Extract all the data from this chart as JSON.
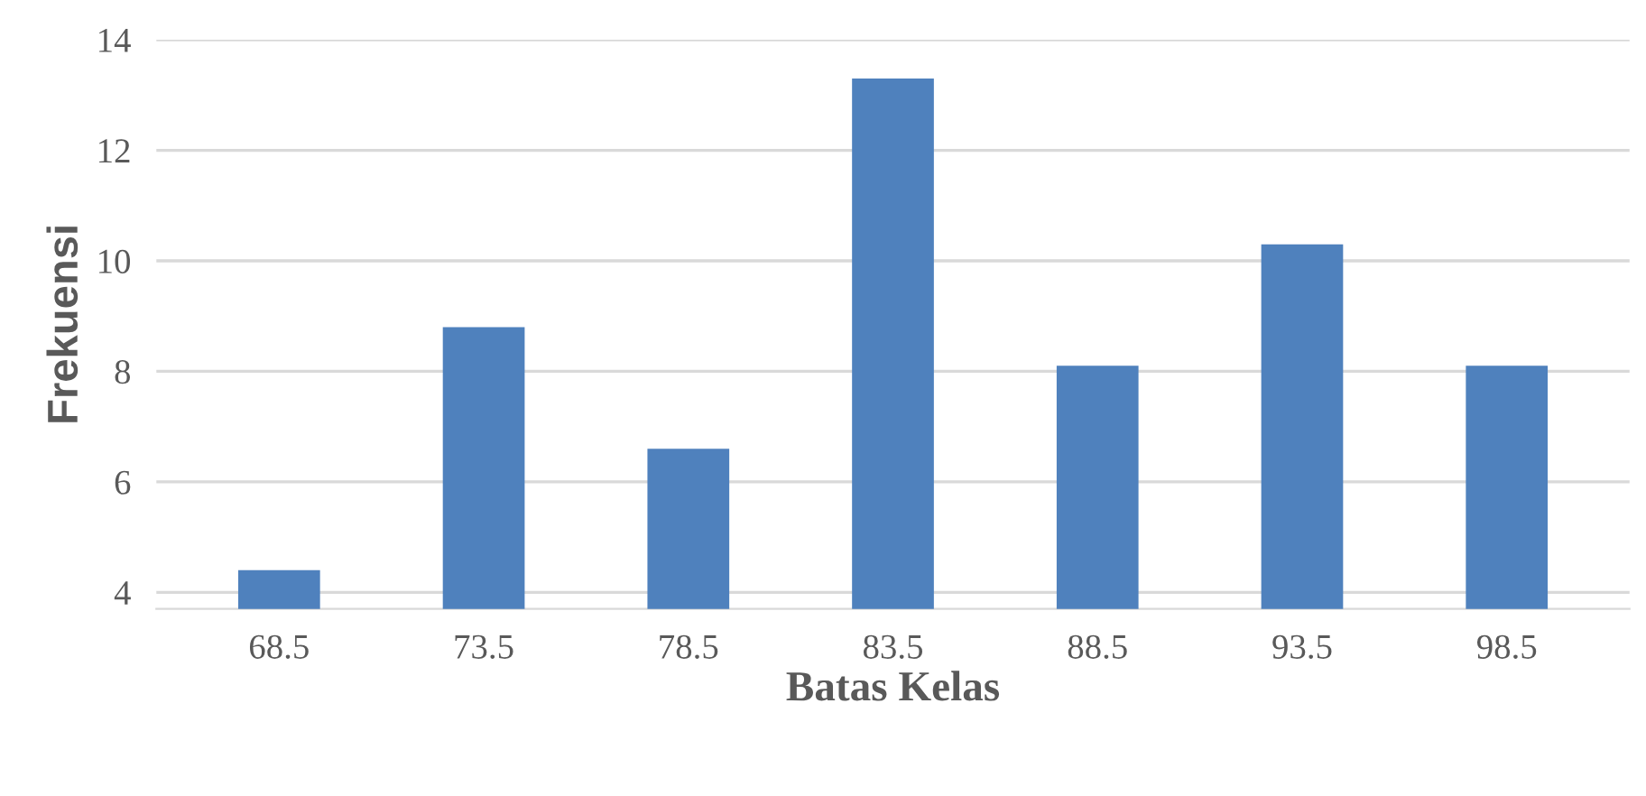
{
  "chart_data": {
    "type": "bar",
    "xlabel": "Batas Kelas",
    "ylabel": "Frekuensi",
    "categories": [
      "68.5",
      "73.5",
      "78.5",
      "83.5",
      "88.5",
      "93.5",
      "98.5"
    ],
    "values": [
      4.4,
      8.8,
      6.6,
      13.3,
      8.1,
      10.3,
      8.1
    ],
    "color": "#4f81bd",
    "ylim": [
      3.7,
      14
    ],
    "yticks": [
      4,
      6,
      8,
      10,
      12,
      14
    ],
    "grid": "y"
  }
}
